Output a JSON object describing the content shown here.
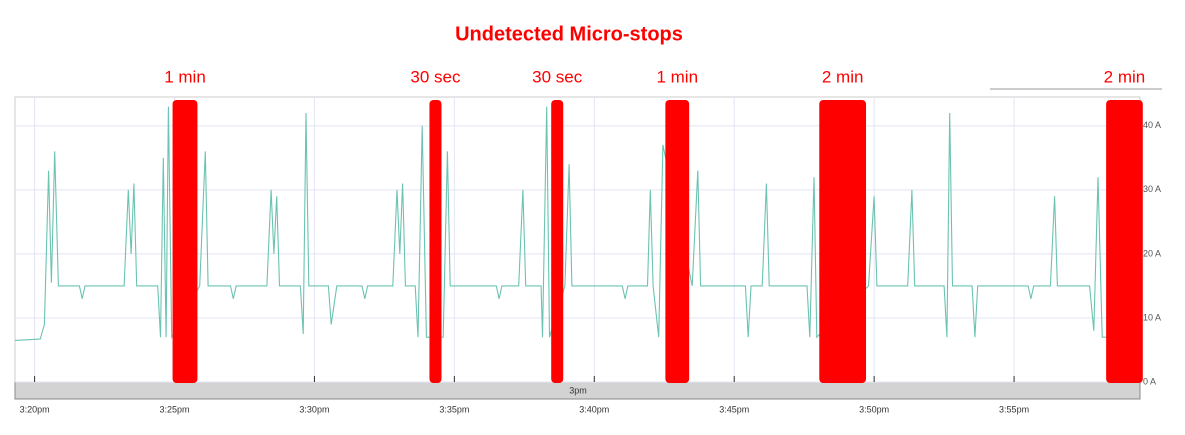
{
  "chart_data": {
    "type": "line",
    "title": "Undetected Micro-stops",
    "x": [
      19.3,
      20.2,
      20.35,
      20.5,
      20.6,
      20.72,
      20.85,
      21.6,
      21.7,
      21.8,
      23.2,
      23.35,
      23.45,
      23.55,
      23.65,
      24.4,
      24.5,
      24.6,
      24.7,
      24.78,
      24.9,
      25.9,
      26.1,
      26.2,
      27.0,
      27.1,
      27.2,
      28.3,
      28.45,
      28.55,
      28.65,
      28.75,
      29.5,
      29.6,
      29.7,
      29.8,
      30.5,
      30.6,
      30.8,
      31.7,
      31.8,
      31.9,
      32.8,
      32.95,
      33.05,
      33.15,
      33.25,
      33.6,
      33.7,
      33.85,
      34.0,
      34.6,
      34.75,
      34.85,
      36.5,
      36.6,
      36.7,
      37.3,
      37.45,
      37.55,
      38.1,
      38.15,
      38.3,
      38.4,
      38.95,
      39.1,
      39.2,
      41.0,
      41.1,
      41.2,
      41.9,
      42.0,
      42.1,
      42.3,
      42.45,
      43.5,
      43.7,
      43.8,
      45.4,
      45.5,
      45.6,
      46.0,
      46.15,
      46.25,
      47.6,
      47.7,
      47.85,
      47.95,
      49.8,
      50.0,
      50.1,
      51.2,
      51.35,
      51.45,
      52.5,
      52.6,
      52.7,
      52.8,
      53.5,
      53.6,
      53.7,
      55.5,
      55.6,
      55.7,
      56.3,
      56.45,
      56.55,
      57.7,
      57.85,
      58.0,
      58.15,
      59.5
    ],
    "series": [
      {
        "color": "#6cc3b1",
        "values": [
          6.5,
          6.7,
          9,
          33,
          15.5,
          36,
          15,
          15,
          13,
          15,
          15,
          30,
          20,
          31,
          15,
          15,
          7,
          35,
          7,
          43,
          7,
          15,
          36,
          15,
          15,
          13,
          15,
          15,
          30,
          20,
          29,
          15,
          15,
          7.5,
          42,
          15,
          15,
          9,
          15,
          15,
          13,
          15,
          15,
          30,
          20,
          31,
          15,
          15,
          7,
          40,
          7,
          7,
          36,
          15,
          15,
          13,
          15,
          15,
          30,
          15,
          15,
          7,
          43,
          7,
          15,
          34,
          15,
          15,
          13,
          15,
          15,
          30,
          15,
          7,
          37,
          15,
          33,
          15,
          15,
          7,
          15,
          15,
          31,
          15,
          15,
          7,
          32,
          7,
          15,
          29,
          15,
          15,
          30,
          15,
          15,
          7,
          42,
          15,
          15,
          7,
          15,
          15,
          13,
          15,
          15,
          29,
          15,
          15,
          8,
          32,
          7,
          7
        ]
      }
    ],
    "xlim": [
      19.3,
      59.5
    ],
    "xticks": [
      {
        "value": 20,
        "label": "3:20pm"
      },
      {
        "value": 25,
        "label": "3:25pm"
      },
      {
        "value": 30,
        "label": "3:30pm"
      },
      {
        "value": 35,
        "label": "3:35pm"
      },
      {
        "value": 40,
        "label": "3:40pm"
      },
      {
        "value": 45,
        "label": "3:45pm"
      },
      {
        "value": 50,
        "label": "3:50pm"
      },
      {
        "value": 55,
        "label": "3:55pm"
      }
    ],
    "ylim": [
      0,
      44.5
    ],
    "yticks": [
      {
        "value": 0,
        "label": "0 A"
      },
      {
        "value": 10,
        "label": "10 A"
      },
      {
        "value": 20,
        "label": "20 A"
      },
      {
        "value": 30,
        "label": "30 A"
      },
      {
        "value": 40,
        "label": "40 A"
      }
    ],
    "grid": true,
    "navigator_label": "3pm",
    "stops": [
      {
        "label": "1 min",
        "start": 24.93,
        "end": 25.82,
        "color": "#ff0000"
      },
      {
        "label": "30 sec",
        "start": 34.11,
        "end": 34.54,
        "color": "#ff0000"
      },
      {
        "label": "30 sec",
        "start": 38.46,
        "end": 38.89,
        "color": "#ff0000"
      },
      {
        "label": "1 min",
        "start": 42.54,
        "end": 43.39,
        "color": "#ff0000"
      },
      {
        "label": "2 min",
        "start": 48.04,
        "end": 49.71,
        "color": "#ff0000"
      },
      {
        "label": "2 min",
        "start": 58.29,
        "end": 59.6,
        "color": "#ff0000"
      }
    ]
  }
}
